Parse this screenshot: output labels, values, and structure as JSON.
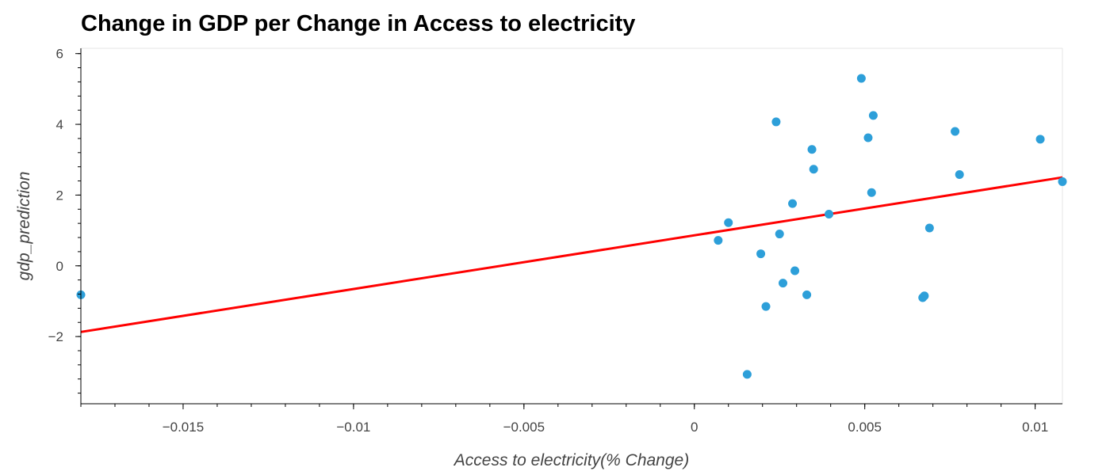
{
  "chart_data": {
    "type": "scatter",
    "title": "Change in GDP per Change in Access to electricity",
    "xlabel": "Access to electricity(% Change)",
    "ylabel": "gdp_prediction",
    "xlim": [
      -0.018,
      0.0108
    ],
    "ylim": [
      -3.9,
      6.15
    ],
    "x_ticks": [
      -0.015,
      -0.01,
      -0.005,
      0,
      0.005,
      0.01
    ],
    "x_tick_labels": [
      "−0.015",
      "−0.01",
      "−0.005",
      "0",
      "0.005",
      "0.01"
    ],
    "y_ticks": [
      -2,
      0,
      2,
      4,
      6
    ],
    "y_tick_labels": [
      "−2",
      "0",
      "2",
      "4",
      "6"
    ],
    "grid": false,
    "point_color": "#2d9fd9",
    "line_color": "#ff0000",
    "points": [
      {
        "x": -0.018,
        "y": -0.82
      },
      {
        "x": 0.0007,
        "y": 0.72
      },
      {
        "x": 0.001,
        "y": 1.22
      },
      {
        "x": 0.00155,
        "y": -3.07
      },
      {
        "x": 0.00195,
        "y": 0.34
      },
      {
        "x": 0.0021,
        "y": -1.15
      },
      {
        "x": 0.0024,
        "y": 4.07
      },
      {
        "x": 0.0025,
        "y": 0.9
      },
      {
        "x": 0.0026,
        "y": -0.49
      },
      {
        "x": 0.00288,
        "y": 1.76
      },
      {
        "x": 0.00295,
        "y": -0.14
      },
      {
        "x": 0.0033,
        "y": -0.82
      },
      {
        "x": 0.00345,
        "y": 3.29
      },
      {
        "x": 0.0035,
        "y": 2.73
      },
      {
        "x": 0.00395,
        "y": 1.46
      },
      {
        "x": 0.0049,
        "y": 5.3
      },
      {
        "x": 0.0051,
        "y": 3.62
      },
      {
        "x": 0.0052,
        "y": 2.07
      },
      {
        "x": 0.00525,
        "y": 4.25
      },
      {
        "x": 0.0067,
        "y": -0.9
      },
      {
        "x": 0.00675,
        "y": -0.85
      },
      {
        "x": 0.0069,
        "y": 1.07
      },
      {
        "x": 0.00765,
        "y": 3.8
      },
      {
        "x": 0.00778,
        "y": 2.58
      },
      {
        "x": 0.01015,
        "y": 3.58
      },
      {
        "x": 0.0108,
        "y": 2.38
      }
    ],
    "regression_line": {
      "x": [
        -0.018,
        0.0108
      ],
      "y": [
        -1.87,
        2.5
      ]
    }
  }
}
